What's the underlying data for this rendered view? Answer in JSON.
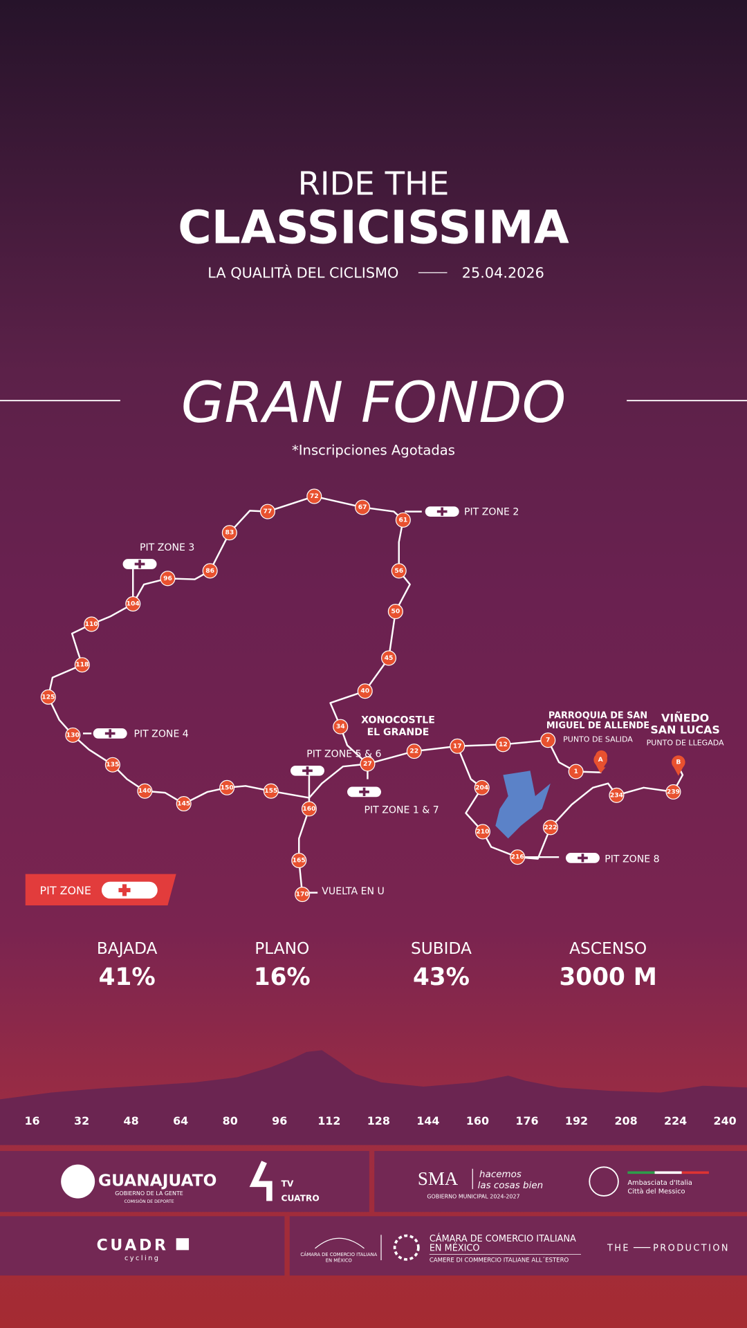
{
  "header": {
    "line1": "RIDE THE",
    "line2": "CLASSICISSIMA",
    "tagline": "LA QUALITÀ DEL CICLISMO",
    "date": "25.04.2026"
  },
  "route": {
    "title": "GRAN FONDO",
    "note": "*Inscripciones Agotadas",
    "markers": [
      "72",
      "67",
      "61",
      "56",
      "50",
      "45",
      "40",
      "34",
      "27",
      "22",
      "17",
      "12",
      "7",
      "1",
      "234",
      "239",
      "222",
      "216",
      "210",
      "204",
      "160",
      "165",
      "170",
      "155",
      "150",
      "145",
      "140",
      "135",
      "130",
      "125",
      "118",
      "110",
      "104",
      "96",
      "86",
      "83",
      "77"
    ],
    "pit_zones": [
      "PIT ZONE 2",
      "PIT ZONE 3",
      "PIT ZONE 4",
      "PIT ZONE 5 & 6",
      "PIT ZONE 1 & 7",
      "PIT ZONE 8"
    ],
    "places": {
      "xonocostle": [
        "XONOCOSTLE",
        "EL GRANDE"
      ],
      "start": [
        "PARROQUIA DE SAN",
        "MIGUEL DE ALLENDE",
        "PUNTO DE SALIDA"
      ],
      "finish": [
        "VIÑEDO",
        "SAN LUCAS",
        "PUNTO DE LLEGADA"
      ],
      "turn": "VUELTA EN U",
      "a": "A",
      "b": "B"
    },
    "legend": "PIT ZONE"
  },
  "stats": [
    {
      "label": "BAJADA",
      "value": "41%"
    },
    {
      "label": "PLANO",
      "value": "16%"
    },
    {
      "label": "SUBIDA",
      "value": "43%"
    },
    {
      "label": "ASCENSO",
      "value": "3000 M"
    }
  ],
  "profile": {
    "axis": [
      "16",
      "32",
      "48",
      "64",
      "80",
      "96",
      "112",
      "128",
      "144",
      "160",
      "176",
      "192",
      "208",
      "224",
      "240"
    ]
  },
  "sponsors": {
    "guanajuato": [
      "GUANAJUATO",
      "GOBIERNO DE LA GENTE",
      "COMISIÓN DE DEPORTE"
    ],
    "tv": [
      "TV",
      "CUATRO"
    ],
    "sma": [
      "SMA",
      "hacemos",
      "las cosas bien",
      "GOBIERNO MUNICIPAL 2024-2027"
    ],
    "embassy": [
      "Ambasciata d'Italia",
      "Città del Messico"
    ],
    "cuadro": [
      "CUADR",
      "cycling"
    ],
    "camara_small": [
      "CÁMARA DE COMERCIO ITALIANA",
      "EN MÉXICO"
    ],
    "camara": [
      "CÁMARA DE COMERCIO ITALIANA",
      "EN MÉXICO",
      "CAMERE DI COMMERCIO ITALIANE ALL´ESTERO"
    ],
    "production": [
      "THE",
      "PRODUCTION"
    ]
  }
}
